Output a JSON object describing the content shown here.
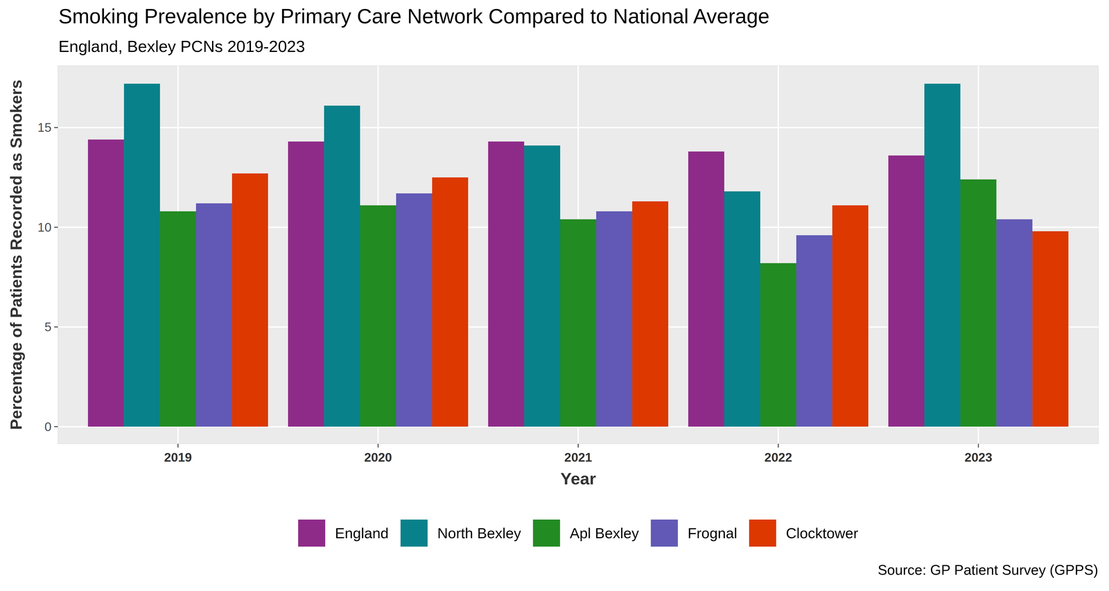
{
  "chart_data": {
    "type": "bar",
    "title": "Smoking Prevalence by Primary Care Network Compared to National Average",
    "subtitle": "England, Bexley PCNs 2019-2023",
    "x_label": "Year",
    "y_label": "Percentage of Patients Recorded as Smokers",
    "caption": "Source: GP Patient Survey (GPPS)",
    "categories": [
      "2019",
      "2020",
      "2021",
      "2022",
      "2023"
    ],
    "series": [
      {
        "name": "England",
        "color": "#8e2b89",
        "values": [
          14.4,
          14.3,
          14.3,
          13.8,
          13.6
        ]
      },
      {
        "name": "North Bexley",
        "color": "#08818b",
        "values": [
          17.2,
          16.1,
          14.1,
          11.8,
          17.2
        ]
      },
      {
        "name": "Apl Bexley",
        "color": "#228b22",
        "values": [
          10.8,
          11.1,
          10.4,
          8.2,
          12.4
        ]
      },
      {
        "name": "Frognal",
        "color": "#6159b5",
        "values": [
          11.2,
          11.7,
          10.8,
          9.6,
          10.4
        ]
      },
      {
        "name": "Clocktower",
        "color": "#dc3800",
        "values": [
          12.7,
          12.5,
          11.3,
          11.1,
          9.8
        ]
      }
    ],
    "ylim": [
      -0.86,
      18.1
    ],
    "yticks": [
      0,
      5,
      10,
      15
    ],
    "grid": true,
    "legend": "bottom"
  }
}
